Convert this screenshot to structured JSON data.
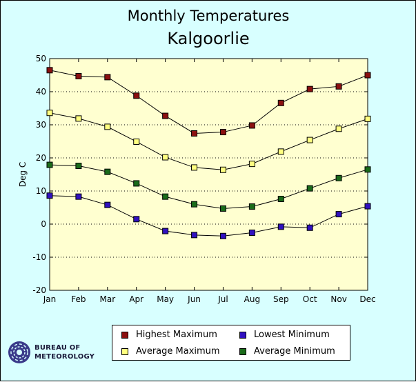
{
  "chart_data": {
    "type": "line",
    "title": "Monthly Temperatures",
    "subtitle": "Kalgoorlie",
    "xlabel": "",
    "ylabel": "Deg C",
    "ylim": [
      -20,
      50
    ],
    "yticks": [
      -20,
      -10,
      0,
      10,
      20,
      30,
      40,
      50
    ],
    "categories": [
      "Jan",
      "Feb",
      "Mar",
      "Apr",
      "May",
      "Jun",
      "Jul",
      "Aug",
      "Sep",
      "Oct",
      "Nov",
      "Dec"
    ],
    "grid": "horizontal dotted",
    "series": [
      {
        "name": "Highest Maximum",
        "color": "#8b1010",
        "values": [
          46.5,
          44.7,
          44.4,
          38.8,
          32.7,
          27.4,
          27.8,
          29.8,
          36.6,
          40.8,
          41.6,
          45.0
        ]
      },
      {
        "name": "Average Maximum",
        "color": "#ffff80",
        "values": [
          33.6,
          31.9,
          29.4,
          24.9,
          20.2,
          17.1,
          16.4,
          18.2,
          21.9,
          25.4,
          28.8,
          31.8
        ]
      },
      {
        "name": "Average Minimum",
        "color": "#1a6b1a",
        "values": [
          17.9,
          17.6,
          15.8,
          12.3,
          8.3,
          6.0,
          4.7,
          5.3,
          7.6,
          10.8,
          13.9,
          16.5
        ]
      },
      {
        "name": "Lowest Minimum",
        "color": "#3010c0",
        "values": [
          8.6,
          8.3,
          5.8,
          1.5,
          -2.1,
          -3.3,
          -3.6,
          -2.6,
          -0.8,
          -1.1,
          3.0,
          5.4
        ]
      }
    ]
  },
  "legend": {
    "items": [
      {
        "label": "Highest Maximum",
        "color": "#8b1010"
      },
      {
        "label": "Lowest Minimum",
        "color": "#3010c0"
      },
      {
        "label": "Average Maximum",
        "color": "#ffff80"
      },
      {
        "label": "Average Minimum",
        "color": "#1a6b1a"
      }
    ]
  },
  "logo": {
    "line1": "Bureau of",
    "line2": "Meteorology"
  }
}
